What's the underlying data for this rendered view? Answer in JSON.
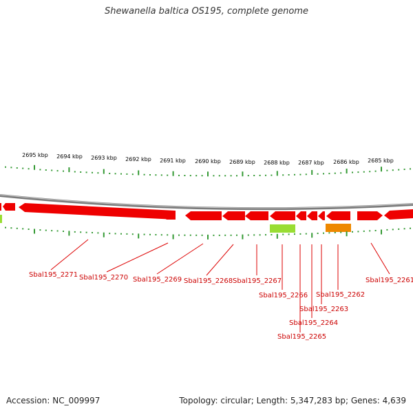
{
  "title": "Shewanella baltica OS195, complete genome",
  "footer": {
    "accession": "Accession: NC_009997",
    "topology": "Topology: circular; Length: 5,347,283 bp; Genes: 4,639"
  },
  "colors": {
    "backbone": "#808080",
    "gene": "#ee0000",
    "tick": "#339933",
    "label": "#cc0000",
    "feature_green": "#99dd33",
    "feature_orange": "#ee8800"
  },
  "scale_labels": [
    "2695 kbp",
    "2694 kbp",
    "2693 kbp",
    "2692 kbp",
    "2691 kbp",
    "2690 kbp",
    "2689 kbp",
    "2688 kbp",
    "2687 kbp",
    "2686 kbp",
    "2685 kbp"
  ],
  "gene_labels": [
    "Sbal195_2271",
    "Sbal195_2270",
    "Sbal195_2269",
    "Sbal195_2268",
    "Sbal195_2267",
    "Sbal195_2266",
    "Sbal195_2265",
    "Sbal195_2264",
    "Sbal195_2263",
    "Sbal195_2262",
    "Sbal195_2261"
  ]
}
